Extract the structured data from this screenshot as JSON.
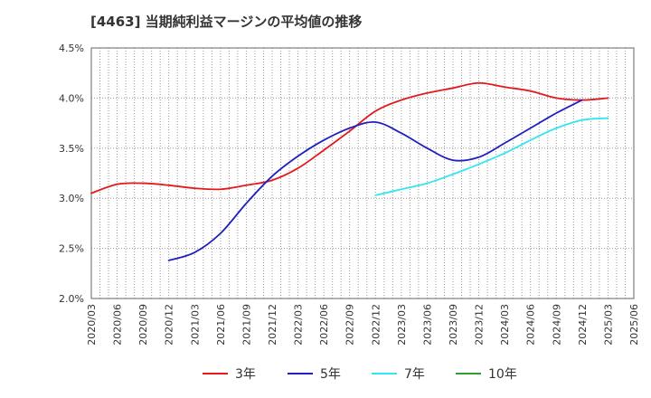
{
  "chart_data": {
    "type": "line",
    "title": "[4463]  当期純利益マージンの平均値の推移",
    "xlabel": "",
    "ylabel": "",
    "ylim": [
      2.0,
      4.5
    ],
    "y_ticks": [
      "2.0%",
      "2.5%",
      "3.0%",
      "3.5%",
      "4.0%",
      "4.5%"
    ],
    "x_ticks": [
      "2020/03",
      "2020/06",
      "2020/09",
      "2020/12",
      "2021/03",
      "2021/06",
      "2021/09",
      "2021/12",
      "2022/03",
      "2022/06",
      "2022/09",
      "2022/12",
      "2023/03",
      "2023/06",
      "2023/09",
      "2023/12",
      "2024/03",
      "2024/06",
      "2024/09",
      "2024/12",
      "2025/03",
      "2025/06"
    ],
    "grid": true,
    "legend_position": "bottom",
    "series": [
      {
        "name": "3年",
        "color": "#e31a1c",
        "start_index": 0,
        "values": [
          3.05,
          3.14,
          3.15,
          3.13,
          3.1,
          3.09,
          3.13,
          3.18,
          3.3,
          3.48,
          3.67,
          3.87,
          3.98,
          4.05,
          4.1,
          4.15,
          4.11,
          4.07,
          4.0,
          3.98,
          4.0
        ]
      },
      {
        "name": "5年",
        "color": "#1f1fbf",
        "start_index": 3,
        "values": [
          2.38,
          2.46,
          2.65,
          2.95,
          3.22,
          3.42,
          3.58,
          3.7,
          3.76,
          3.65,
          3.5,
          3.38,
          3.41,
          3.55,
          3.7,
          3.85,
          3.98
        ]
      },
      {
        "name": "7年",
        "color": "#33e6f0",
        "start_index": 11,
        "values": [
          3.03,
          3.09,
          3.15,
          3.24,
          3.34,
          3.45,
          3.58,
          3.7,
          3.78,
          3.8
        ]
      },
      {
        "name": "10年",
        "color": "#2ca02c",
        "start_index": 0,
        "values": []
      }
    ]
  }
}
